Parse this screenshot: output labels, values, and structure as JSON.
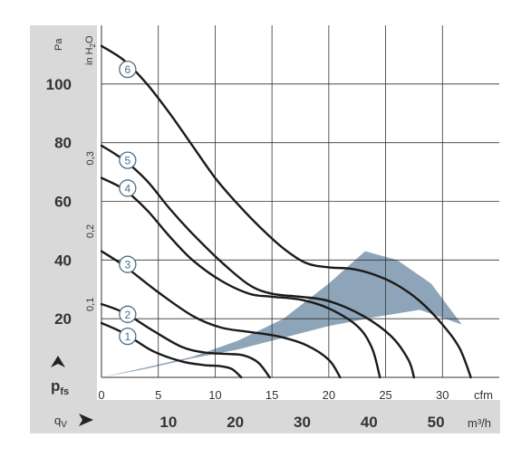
{
  "colors": {
    "panel_gray": "#d9d9d9",
    "grid": "#333333",
    "curve": "#1a1a1a",
    "operating_region": "#8ea4b8",
    "curve_label": "#4a6e87"
  },
  "chart_data": {
    "type": "line",
    "y_axis_pa": {
      "unit": "Pa",
      "range": [
        0,
        120
      ],
      "ticks": [
        20,
        40,
        60,
        80,
        100
      ]
    },
    "y_axis_inh2o": {
      "unit": "in H2O",
      "ticks": [
        "0,1",
        "0,2",
        "0,3"
      ],
      "tick_values": [
        0.1,
        0.2,
        0.3
      ]
    },
    "y_label": "pfs",
    "x_axis_cfm": {
      "unit": "cfm",
      "range": [
        0,
        35
      ],
      "ticks": [
        0,
        5,
        10,
        15,
        20,
        25,
        30
      ]
    },
    "x_axis_m3h": {
      "unit": "m³/h",
      "ticks": [
        10,
        20,
        30,
        40,
        50
      ]
    },
    "x_label": "qV",
    "grid": true,
    "series": [
      {
        "name": "1",
        "points": [
          [
            0,
            18.5
          ],
          [
            2,
            15
          ],
          [
            4.5,
            9
          ],
          [
            7,
            5.5
          ],
          [
            9,
            4.2
          ],
          [
            10.5,
            3.8
          ],
          [
            11.5,
            2.8
          ],
          [
            12.3,
            0
          ]
        ]
      },
      {
        "name": "2",
        "points": [
          [
            0,
            25
          ],
          [
            2,
            22
          ],
          [
            4.5,
            16
          ],
          [
            7,
            10.5
          ],
          [
            9,
            8.5
          ],
          [
            11,
            8
          ],
          [
            12.5,
            7.5
          ],
          [
            13.8,
            5
          ],
          [
            14.8,
            0
          ]
        ]
      },
      {
        "name": "3",
        "points": [
          [
            0,
            43
          ],
          [
            2,
            38
          ],
          [
            5,
            29
          ],
          [
            8,
            21
          ],
          [
            10.5,
            17
          ],
          [
            13,
            15.5
          ],
          [
            15.5,
            14
          ],
          [
            18,
            11
          ],
          [
            20,
            6
          ],
          [
            21,
            0
          ]
        ]
      },
      {
        "name": "4",
        "points": [
          [
            0,
            68
          ],
          [
            2,
            64
          ],
          [
            4,
            57
          ],
          [
            6,
            48
          ],
          [
            8,
            40
          ],
          [
            10.5,
            33
          ],
          [
            13,
            28.5
          ],
          [
            15,
            27.5
          ],
          [
            17.5,
            26.5
          ],
          [
            20,
            23.5
          ],
          [
            22.5,
            17.5
          ],
          [
            23.8,
            10
          ],
          [
            24.5,
            0
          ]
        ]
      },
      {
        "name": "5",
        "points": [
          [
            0,
            79
          ],
          [
            2,
            74
          ],
          [
            4,
            67
          ],
          [
            6,
            57.5
          ],
          [
            8,
            49
          ],
          [
            10.5,
            39.5
          ],
          [
            13,
            31.5
          ],
          [
            15,
            28.5
          ],
          [
            17.5,
            27.5
          ],
          [
            20,
            26
          ],
          [
            23,
            21
          ],
          [
            25.5,
            14
          ],
          [
            27,
            6
          ],
          [
            27.5,
            0
          ]
        ]
      },
      {
        "name": "6",
        "points": [
          [
            0,
            113
          ],
          [
            2,
            108
          ],
          [
            4,
            100
          ],
          [
            6,
            90
          ],
          [
            8,
            79
          ],
          [
            10,
            68
          ],
          [
            12,
            59
          ],
          [
            14,
            51
          ],
          [
            16,
            44
          ],
          [
            18,
            39
          ],
          [
            20,
            37.5
          ],
          [
            22,
            37
          ],
          [
            24,
            35
          ],
          [
            26,
            31.5
          ],
          [
            28,
            26
          ],
          [
            30,
            18
          ],
          [
            31.5,
            10
          ],
          [
            32.5,
            0
          ]
        ]
      }
    ],
    "operating_region": [
      [
        0,
        0
      ],
      [
        4,
        3
      ],
      [
        8,
        6.5
      ],
      [
        12,
        9.5
      ],
      [
        16,
        13.5
      ],
      [
        20,
        17.5
      ],
      [
        24,
        20.5
      ],
      [
        28,
        23
      ],
      [
        31.7,
        18
      ],
      [
        29,
        32
      ],
      [
        26,
        40
      ],
      [
        23.2,
        43
      ],
      [
        20,
        32
      ],
      [
        16,
        20
      ],
      [
        12,
        12.5
      ],
      [
        8,
        7
      ],
      [
        4,
        3.5
      ],
      [
        0,
        0
      ]
    ],
    "curve_labels": [
      {
        "name": "1",
        "x": 2.3,
        "y": 14
      },
      {
        "name": "2",
        "x": 2.3,
        "y": 21.5
      },
      {
        "name": "3",
        "x": 2.3,
        "y": 38.5
      },
      {
        "name": "4",
        "x": 2.3,
        "y": 64.5
      },
      {
        "name": "5",
        "x": 2.3,
        "y": 74
      },
      {
        "name": "6",
        "x": 2.3,
        "y": 105
      }
    ]
  }
}
